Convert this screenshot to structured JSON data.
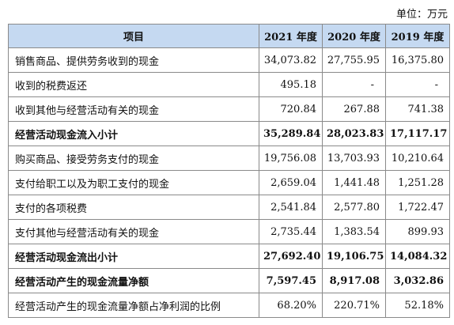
{
  "unit_label": "单位：万元",
  "table": {
    "headers": [
      "项目",
      "2021 年度",
      "2020 年度",
      "2019 年度"
    ],
    "rows": [
      {
        "label": "销售商品、提供劳务收到的现金",
        "values": [
          "34,073.82",
          "27,755.95",
          "16,375.80"
        ],
        "bold": false
      },
      {
        "label": "收到的税费返还",
        "values": [
          "495.18",
          "-",
          "-"
        ],
        "bold": false
      },
      {
        "label": "收到其他与经营活动有关的现金",
        "values": [
          "720.84",
          "267.88",
          "741.38"
        ],
        "bold": false
      },
      {
        "label": "经营活动现金流入小计",
        "values": [
          "35,289.84",
          "28,023.83",
          "17,117.17"
        ],
        "bold": true
      },
      {
        "label": "购买商品、接受劳务支付的现金",
        "values": [
          "19,756.08",
          "13,703.93",
          "10,210.64"
        ],
        "bold": false
      },
      {
        "label": "支付给职工以及为职工支付的现金",
        "values": [
          "2,659.04",
          "1,441.48",
          "1,251.28"
        ],
        "bold": false
      },
      {
        "label": "支付的各项税费",
        "values": [
          "2,541.84",
          "2,577.80",
          "1,722.47"
        ],
        "bold": false
      },
      {
        "label": "支付其他与经营活动有关的现金",
        "values": [
          "2,735.44",
          "1,383.54",
          "899.93"
        ],
        "bold": false
      },
      {
        "label": "经营活动现金流出小计",
        "values": [
          "27,692.40",
          "19,106.75",
          "14,084.32"
        ],
        "bold": true
      },
      {
        "label": "经营活动产生的现金流量净额",
        "values": [
          "7,597.45",
          "8,917.08",
          "3,032.86"
        ],
        "bold": true
      },
      {
        "label": "经营活动产生的现金流量净额占净利润的比例",
        "values": [
          "68.20%",
          "220.71%",
          "52.18%"
        ],
        "bold": false
      }
    ]
  }
}
